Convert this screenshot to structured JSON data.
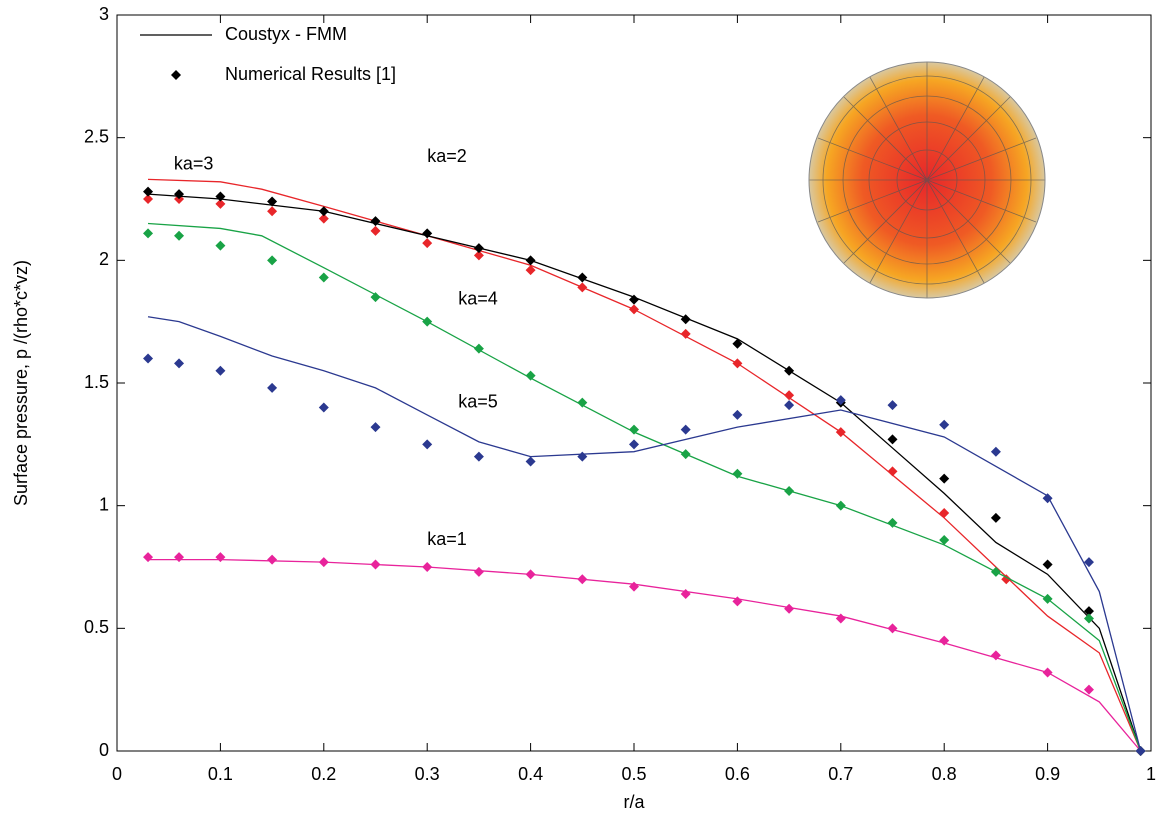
{
  "chart_data": {
    "type": "line",
    "xlabel": "r/a",
    "ylabel": "Surface pressure, p /(rho*c*vz)",
    "xlim": [
      0,
      1
    ],
    "ylim": [
      0,
      3
    ],
    "xticks": [
      0,
      0.1,
      0.2,
      0.3,
      0.4,
      0.5,
      0.6,
      0.7,
      0.8,
      0.9,
      1
    ],
    "yticks": [
      0,
      0.5,
      1,
      1.5,
      2,
      2.5,
      3
    ],
    "grid": false,
    "legend_position": "upper left",
    "legend": [
      {
        "name": "Coustyx - FMM",
        "style": "line",
        "color": "#000000"
      },
      {
        "name": "Numerical Results [1]",
        "style": "markers",
        "color": "#000000"
      }
    ],
    "series": [
      {
        "name": "ka=1",
        "style": "line",
        "color": "#e8239b",
        "x": [
          0.03,
          0.1,
          0.2,
          0.3,
          0.4,
          0.5,
          0.6,
          0.7,
          0.8,
          0.9,
          0.95,
          0.99
        ],
        "values": [
          0.78,
          0.78,
          0.77,
          0.75,
          0.72,
          0.68,
          0.62,
          0.55,
          0.44,
          0.32,
          0.2,
          0
        ]
      },
      {
        "style": "markers",
        "color": "#e8239b",
        "x": [
          0.03,
          0.06,
          0.1,
          0.15,
          0.2,
          0.25,
          0.3,
          0.35,
          0.4,
          0.45,
          0.5,
          0.55,
          0.6,
          0.65,
          0.7,
          0.75,
          0.8,
          0.85,
          0.9,
          0.94,
          0.99
        ],
        "values": [
          0.79,
          0.79,
          0.79,
          0.78,
          0.77,
          0.76,
          0.75,
          0.73,
          0.72,
          0.7,
          0.67,
          0.64,
          0.61,
          0.58,
          0.54,
          0.5,
          0.45,
          0.39,
          0.32,
          0.25,
          0
        ]
      },
      {
        "name": "ka=3",
        "style": "line",
        "color": "#e8262a",
        "x": [
          0.03,
          0.1,
          0.14,
          0.2,
          0.3,
          0.4,
          0.5,
          0.6,
          0.7,
          0.8,
          0.85,
          0.9,
          0.95,
          0.99
        ],
        "values": [
          2.33,
          2.32,
          2.29,
          2.22,
          2.1,
          1.98,
          1.8,
          1.58,
          1.3,
          0.95,
          0.75,
          0.55,
          0.4,
          0
        ]
      },
      {
        "style": "markers",
        "color": "#e8262a",
        "x": [
          0.03,
          0.06,
          0.1,
          0.15,
          0.2,
          0.25,
          0.3,
          0.35,
          0.4,
          0.45,
          0.5,
          0.55,
          0.6,
          0.65,
          0.7,
          0.75,
          0.8,
          0.86,
          0.99
        ],
        "values": [
          2.25,
          2.25,
          2.23,
          2.2,
          2.17,
          2.12,
          2.07,
          2.02,
          1.96,
          1.89,
          1.8,
          1.7,
          1.58,
          1.45,
          1.3,
          1.14,
          0.97,
          0.7,
          0
        ]
      },
      {
        "name": "ka=2",
        "style": "line",
        "color": "#000000",
        "x": [
          0.03,
          0.1,
          0.2,
          0.3,
          0.4,
          0.5,
          0.6,
          0.7,
          0.8,
          0.85,
          0.9,
          0.95,
          0.99
        ],
        "values": [
          2.27,
          2.25,
          2.2,
          2.1,
          2.0,
          1.85,
          1.68,
          1.42,
          1.05,
          0.85,
          0.72,
          0.5,
          0
        ]
      },
      {
        "style": "markers",
        "color": "#000000",
        "x": [
          0.03,
          0.06,
          0.1,
          0.15,
          0.2,
          0.25,
          0.3,
          0.35,
          0.4,
          0.45,
          0.5,
          0.55,
          0.6,
          0.65,
          0.7,
          0.75,
          0.8,
          0.85,
          0.9,
          0.94,
          0.99
        ],
        "values": [
          2.28,
          2.27,
          2.26,
          2.24,
          2.2,
          2.16,
          2.11,
          2.05,
          2.0,
          1.93,
          1.84,
          1.76,
          1.66,
          1.55,
          1.42,
          1.27,
          1.11,
          0.95,
          0.76,
          0.57,
          0
        ]
      },
      {
        "name": "ka=4",
        "style": "line",
        "color": "#19a346",
        "x": [
          0.03,
          0.1,
          0.14,
          0.2,
          0.3,
          0.4,
          0.5,
          0.6,
          0.7,
          0.8,
          0.9,
          0.95,
          0.99
        ],
        "values": [
          2.15,
          2.13,
          2.1,
          1.97,
          1.75,
          1.52,
          1.3,
          1.12,
          1.0,
          0.84,
          0.62,
          0.45,
          0
        ]
      },
      {
        "style": "markers",
        "color": "#19a346",
        "x": [
          0.03,
          0.06,
          0.1,
          0.15,
          0.2,
          0.25,
          0.3,
          0.35,
          0.4,
          0.45,
          0.5,
          0.55,
          0.6,
          0.65,
          0.7,
          0.75,
          0.8,
          0.85,
          0.9,
          0.94,
          0.99
        ],
        "values": [
          2.11,
          2.1,
          2.06,
          2.0,
          1.93,
          1.85,
          1.75,
          1.64,
          1.53,
          1.42,
          1.31,
          1.21,
          1.13,
          1.06,
          1.0,
          0.93,
          0.86,
          0.73,
          0.62,
          0.54,
          0
        ]
      },
      {
        "name": "ka=5",
        "style": "line",
        "color": "#2b3990",
        "x": [
          0.03,
          0.06,
          0.1,
          0.15,
          0.2,
          0.25,
          0.3,
          0.35,
          0.4,
          0.5,
          0.6,
          0.7,
          0.8,
          0.9,
          0.95,
          0.99
        ],
        "values": [
          1.77,
          1.75,
          1.69,
          1.61,
          1.55,
          1.48,
          1.37,
          1.26,
          1.2,
          1.22,
          1.32,
          1.39,
          1.28,
          1.04,
          0.65,
          0
        ]
      },
      {
        "style": "markers",
        "color": "#2b3990",
        "x": [
          0.03,
          0.06,
          0.1,
          0.15,
          0.2,
          0.25,
          0.3,
          0.35,
          0.4,
          0.45,
          0.5,
          0.55,
          0.6,
          0.65,
          0.7,
          0.75,
          0.8,
          0.85,
          0.9,
          0.94,
          0.99
        ],
        "values": [
          1.6,
          1.58,
          1.55,
          1.48,
          1.4,
          1.32,
          1.25,
          1.2,
          1.18,
          1.2,
          1.25,
          1.31,
          1.37,
          1.41,
          1.43,
          1.41,
          1.33,
          1.22,
          1.03,
          0.77,
          0
        ]
      }
    ]
  }
}
